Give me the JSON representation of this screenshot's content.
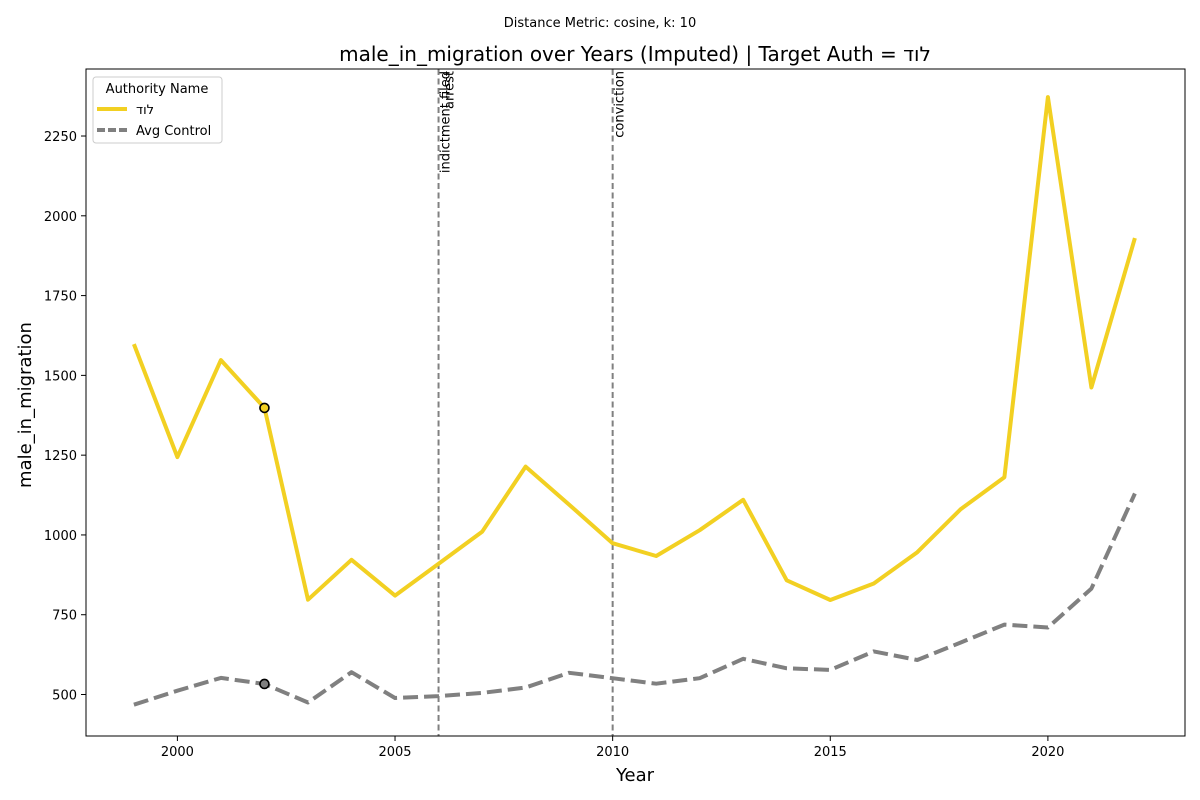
{
  "chart_data": {
    "type": "line",
    "subtitle": "Distance Metric: cosine, k: 10",
    "title": "male_in_migration over Years (Imputed) | Target Auth = לוד",
    "xlabel": "Year",
    "ylabel": "male_in_migration",
    "xlim": [
      1997.9,
      2023.15
    ],
    "ylim": [
      370,
      2460
    ],
    "x_ticks": [
      2000,
      2005,
      2010,
      2015,
      2020
    ],
    "y_ticks": [
      500,
      750,
      1000,
      1250,
      1500,
      1750,
      2000,
      2250
    ],
    "x": [
      1999,
      2000,
      2001,
      2002,
      2003,
      2004,
      2005,
      2006,
      2007,
      2008,
      2009,
      2010,
      2011,
      2012,
      2013,
      2014,
      2015,
      2016,
      2017,
      2018,
      2019,
      2020,
      2021,
      2022
    ],
    "series": [
      {
        "name": "לוד",
        "color": "#f2d022",
        "style": "solid",
        "values": [
          1598,
          1244,
          1548,
          1398,
          797,
          922,
          810,
          910,
          1010,
          1214,
          1095,
          974,
          934,
          1015,
          1110,
          858,
          796,
          848,
          946,
          1081,
          1181,
          2372,
          1462,
          1930
        ],
        "markers": [
          {
            "x": 2002,
            "y": 1398
          }
        ]
      },
      {
        "name": "Avg Control",
        "color": "#808080",
        "style": "dashed",
        "values": [
          468,
          512,
          552,
          533,
          475,
          570,
          489,
          495,
          505,
          522,
          568,
          551,
          534,
          551,
          612,
          582,
          577,
          635,
          608,
          663,
          719,
          710,
          832,
          1130
        ],
        "markers": [
          {
            "x": 2002,
            "y": 533
          }
        ]
      }
    ],
    "events": [
      {
        "x": 2006,
        "label": "indictment filed"
      },
      {
        "x": 2006,
        "label": "arrest"
      },
      {
        "x": 2010,
        "label": "conviction"
      }
    ],
    "legend": {
      "title": "Authority Name",
      "placement": "top-left"
    },
    "grid": false
  }
}
